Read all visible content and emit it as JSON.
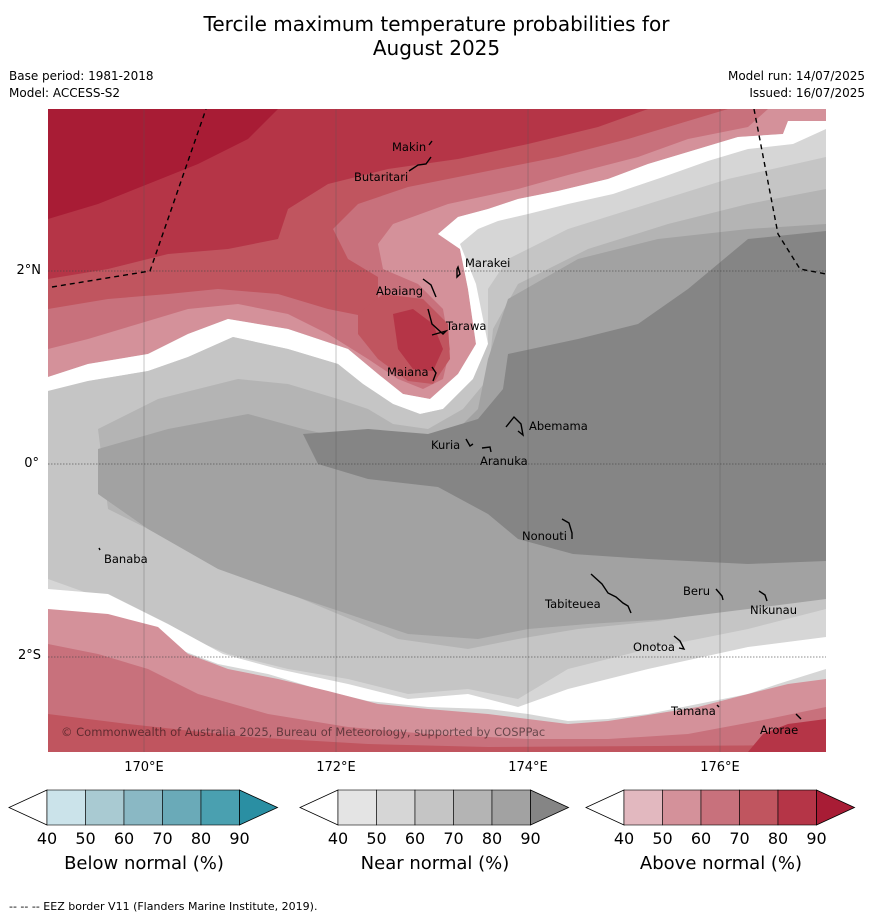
{
  "title_line1": "Tercile maximum temperature probabilities for",
  "title_line2": "August 2025",
  "base_period": "Base period: 1981-2018",
  "model": "Model: ACCESS-S2",
  "model_run": "Model run: 14/07/2025",
  "issued": "Issued: 16/07/2025",
  "copyright": "© Commonwealth of Australia 2025, Bureau of Meteorology, supported by COSPPac",
  "lat_labels": [
    "2°N",
    "0°",
    "2°S"
  ],
  "lon_labels": [
    "170°E",
    "172°E",
    "174°E",
    "176°E"
  ],
  "places": [
    "Makin",
    "Butaritari",
    "Marakei",
    "Abaiang",
    "Tarawa",
    "Maiana",
    "Abemama",
    "Kuria",
    "Aranuka",
    "Nonouti",
    "Banaba",
    "Beru",
    "Tabiteuea",
    "Nikunau",
    "Onotoa",
    "Tamana",
    "Arorae"
  ],
  "colorbars": [
    {
      "label": "Below normal (%)",
      "ticks": [
        "40",
        "50",
        "60",
        "70",
        "80",
        "90"
      ],
      "colors": [
        "#ffffff",
        "#cbe3ea",
        "#a9cad2",
        "#8ab8c4",
        "#6aaab8",
        "#4aa0b0",
        "#2a8fa3"
      ]
    },
    {
      "label": "Near normal (%)",
      "ticks": [
        "40",
        "50",
        "60",
        "70",
        "80",
        "90"
      ],
      "colors": [
        "#ffffff",
        "#e4e4e4",
        "#d6d6d6",
        "#c5c5c5",
        "#b4b4b4",
        "#a2a2a2",
        "#858585"
      ]
    },
    {
      "label": "Above normal (%)",
      "ticks": [
        "40",
        "50",
        "60",
        "70",
        "80",
        "90"
      ],
      "colors": [
        "#ffffff",
        "#e2b8bf",
        "#d4919a",
        "#c8717c",
        "#c0555f",
        "#b53547",
        "#a81c35"
      ]
    }
  ],
  "footer": "--  --  -- EEZ border V11 (Flanders Marine Institute, 2019)."
}
